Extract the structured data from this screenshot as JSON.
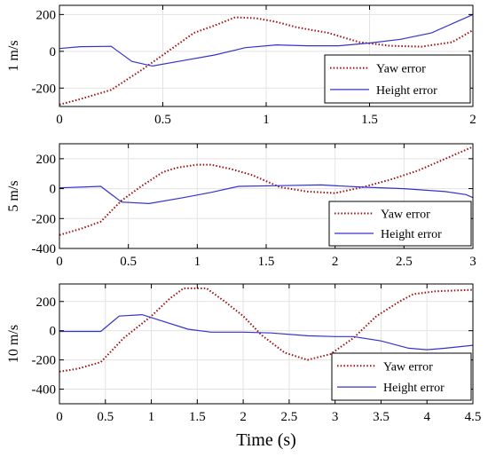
{
  "x_axis_label": "Time (s)",
  "colors": {
    "yaw": "#a01010",
    "height": "#3333cc"
  },
  "chart_data": [
    {
      "type": "line",
      "ylabel": "1 m/s",
      "xlim": [
        0,
        2
      ],
      "ylim": [
        -300,
        250
      ],
      "xticks": [
        0,
        0.5,
        1,
        1.5,
        2
      ],
      "xtick_labels": [
        "0",
        "0.5",
        "1",
        "1.5",
        "2"
      ],
      "yticks": [
        -200,
        0,
        200
      ],
      "ytick_labels": [
        "-200",
        "0",
        "200"
      ],
      "grid": true,
      "legend_position": "lower-right",
      "series": [
        {
          "name": "Yaw error",
          "style": "dotted",
          "x": [
            0,
            0.1,
            0.25,
            0.4,
            0.55,
            0.65,
            0.75,
            0.85,
            0.95,
            1.05,
            1.15,
            1.3,
            1.45,
            1.6,
            1.75,
            1.9,
            2.0
          ],
          "y": [
            -290,
            -260,
            -210,
            -100,
            20,
            100,
            140,
            185,
            180,
            160,
            130,
            100,
            50,
            30,
            25,
            50,
            115
          ]
        },
        {
          "name": "Height error",
          "style": "solid",
          "x": [
            0,
            0.1,
            0.25,
            0.35,
            0.45,
            0.6,
            0.75,
            0.9,
            1.05,
            1.2,
            1.35,
            1.5,
            1.65,
            1.8,
            1.9,
            2.0
          ],
          "y": [
            15,
            25,
            27,
            -55,
            -80,
            -50,
            -20,
            20,
            35,
            30,
            30,
            45,
            65,
            100,
            150,
            200
          ]
        }
      ]
    },
    {
      "type": "line",
      "ylabel": "5 m/s",
      "xlim": [
        0,
        3
      ],
      "ylim": [
        -400,
        300
      ],
      "xticks": [
        0,
        0.5,
        1,
        1.5,
        2,
        2.5,
        3
      ],
      "xtick_labels": [
        "0",
        "0.5",
        "1",
        "1.5",
        "2",
        "2.5",
        "3"
      ],
      "yticks": [
        -400,
        -200,
        0,
        200
      ],
      "ytick_labels": [
        "-400",
        "-200",
        "0",
        "200"
      ],
      "grid": true,
      "legend_position": "lower-right",
      "series": [
        {
          "name": "Yaw error",
          "style": "dotted",
          "x": [
            0,
            0.15,
            0.3,
            0.45,
            0.6,
            0.75,
            0.85,
            1.0,
            1.1,
            1.25,
            1.4,
            1.6,
            1.8,
            2.0,
            2.2,
            2.4,
            2.6,
            2.8,
            3.0
          ],
          "y": [
            -310,
            -270,
            -220,
            -80,
            20,
            110,
            140,
            160,
            160,
            130,
            90,
            10,
            -20,
            -30,
            10,
            60,
            120,
            200,
            280
          ]
        },
        {
          "name": "Height error",
          "style": "solid",
          "x": [
            0,
            0.15,
            0.3,
            0.45,
            0.65,
            0.9,
            1.1,
            1.3,
            1.6,
            1.9,
            2.2,
            2.5,
            2.8,
            2.95,
            3.0
          ],
          "y": [
            5,
            10,
            15,
            -90,
            -100,
            -60,
            -25,
            15,
            20,
            25,
            10,
            0,
            -20,
            -40,
            -60
          ]
        }
      ]
    },
    {
      "type": "line",
      "ylabel": "10 m/s",
      "xlim": [
        0,
        4.5
      ],
      "ylim": [
        -500,
        320
      ],
      "xticks": [
        0,
        0.5,
        1,
        1.5,
        2,
        2.5,
        3,
        3.5,
        4,
        4.5
      ],
      "xtick_labels": [
        "0",
        "0.5",
        "1",
        "1.5",
        "2",
        "2.5",
        "3",
        "3.5",
        "4",
        "4.5"
      ],
      "yticks": [
        -400,
        -200,
        0,
        200
      ],
      "ytick_labels": [
        "-400",
        "-200",
        "0",
        "200"
      ],
      "grid": true,
      "legend_position": "lower-right",
      "series": [
        {
          "name": "Yaw error",
          "style": "dotted",
          "x": [
            0,
            0.2,
            0.45,
            0.7,
            1.0,
            1.2,
            1.35,
            1.6,
            1.8,
            2.0,
            2.2,
            2.45,
            2.7,
            2.95,
            3.2,
            3.45,
            3.7,
            3.85,
            4.1,
            4.5
          ],
          "y": [
            -280,
            -260,
            -215,
            -50,
            100,
            220,
            290,
            290,
            200,
            100,
            -30,
            -150,
            -200,
            -160,
            -50,
            100,
            200,
            250,
            270,
            280
          ]
        },
        {
          "name": "Height error",
          "style": "solid",
          "x": [
            0,
            0.2,
            0.45,
            0.65,
            0.9,
            1.1,
            1.4,
            1.65,
            2.0,
            2.3,
            2.7,
            3.0,
            3.2,
            3.5,
            3.8,
            4.0,
            4.2,
            4.5
          ],
          "y": [
            -5,
            -5,
            -5,
            100,
            110,
            70,
            10,
            -10,
            -10,
            -15,
            -35,
            -40,
            -40,
            -70,
            -120,
            -130,
            -120,
            -100
          ]
        }
      ]
    }
  ]
}
